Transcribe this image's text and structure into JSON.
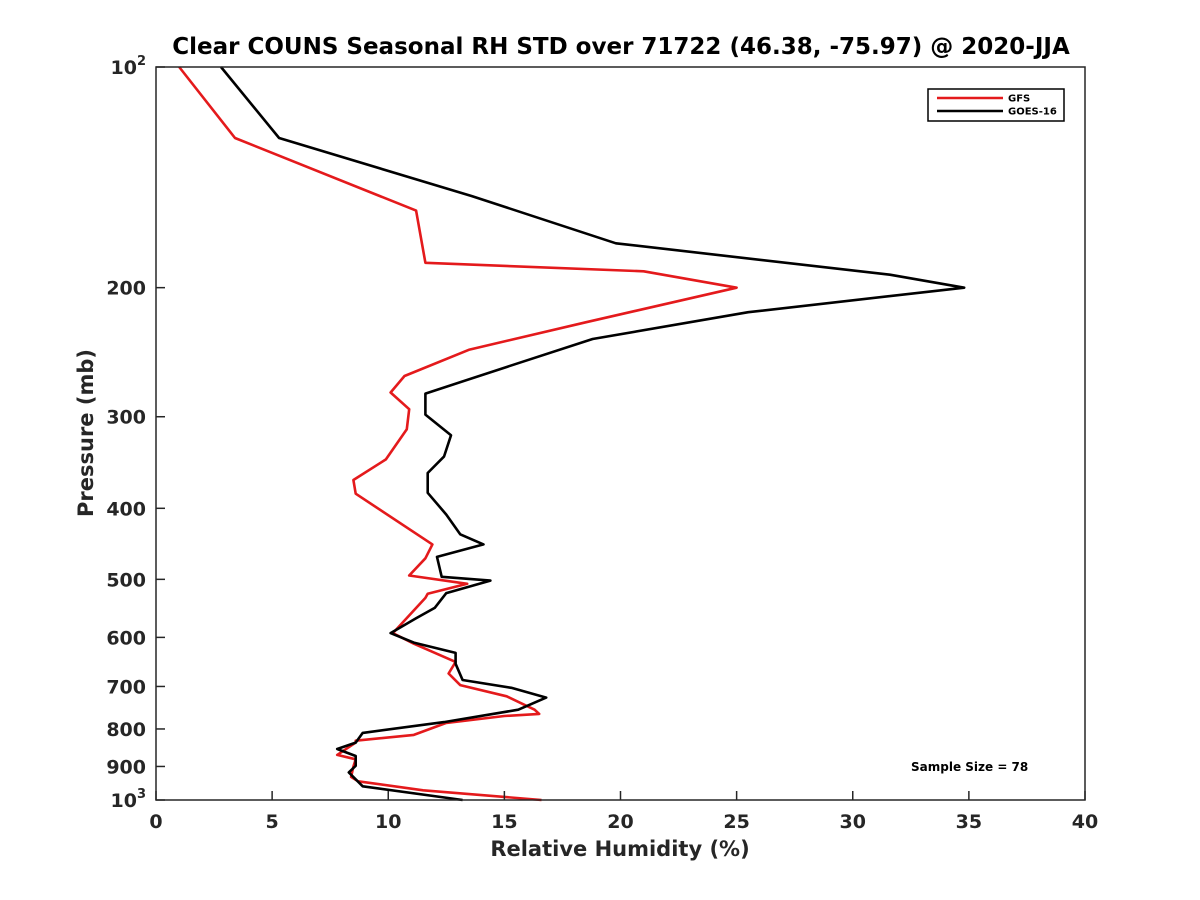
{
  "chart_data": {
    "type": "line",
    "title": "Clear COUNS Seasonal RH STD over 71722 (46.38, -75.97) @ 2020-JJA",
    "xlabel": "Relative Humidity (%)",
    "ylabel": "Pressure (mb)",
    "xlim": [
      0,
      40
    ],
    "ylim": [
      100,
      1000
    ],
    "y_scale": "log",
    "y_reversed": true,
    "x_ticks": [
      "0",
      "5",
      "10",
      "15",
      "20",
      "25",
      "30",
      "35",
      "40"
    ],
    "y_ticks": [
      {
        "value": 100,
        "base": "10",
        "exp": "2"
      },
      {
        "value": 200,
        "label": "200"
      },
      {
        "value": 300,
        "label": "300"
      },
      {
        "value": 400,
        "label": "400"
      },
      {
        "value": 500,
        "label": "500"
      },
      {
        "value": 600,
        "label": "600"
      },
      {
        "value": 700,
        "label": "700"
      },
      {
        "value": 800,
        "label": "800"
      },
      {
        "value": 900,
        "label": "900"
      },
      {
        "value": 1000,
        "base": "10",
        "exp": "3"
      }
    ],
    "legend": {
      "placement": "top-right",
      "entries": [
        "GFS",
        "GOES-16"
      ]
    },
    "annotation": "Sample Size = 78",
    "series": [
      {
        "name": "GFS",
        "color": "#e41a1c",
        "x": [
          1.0,
          3.4,
          11.2,
          11.6,
          21.0,
          25.0,
          18.5,
          13.5,
          10.7,
          10.1,
          10.9,
          10.8,
          9.9,
          8.5,
          8.6,
          11.9,
          11.6,
          10.9,
          13.4,
          11.7,
          11.6,
          10.2,
          11.1,
          12.9,
          12.6,
          13.1,
          15.1,
          16.3,
          16.5,
          15.0,
          12.5,
          11.1,
          8.6,
          8.6,
          7.8,
          8.6,
          8.5,
          8.4,
          8.7,
          11.5,
          16.6
        ],
        "y": [
          100,
          125,
          157,
          185,
          190,
          200,
          223,
          243,
          264,
          278,
          293,
          312,
          343,
          366,
          382,
          448,
          468,
          494,
          507,
          523,
          530,
          592,
          612,
          648,
          672,
          697,
          722,
          753,
          763,
          768,
          785,
          815,
          830,
          835,
          868,
          880,
          900,
          930,
          943,
          970,
          1000
        ]
      },
      {
        "name": "GOES-16",
        "color": "#000000",
        "x": [
          2.8,
          5.3,
          13.6,
          19.8,
          31.6,
          34.8,
          25.5,
          18.8,
          15.2,
          11.6,
          11.6,
          12.7,
          12.4,
          11.7,
          11.7,
          12.5,
          13.1,
          14.1,
          12.1,
          12.3,
          14.4,
          12.5,
          12.0,
          11.2,
          10.1,
          11.1,
          12.9,
          12.9,
          13.2,
          15.3,
          16.8,
          15.6,
          12.4,
          8.9,
          8.6,
          7.8,
          8.6,
          8.6,
          8.3,
          8.9,
          13.2
        ],
        "y": [
          100,
          125,
          150,
          174,
          192,
          200,
          216,
          235,
          256,
          279,
          298,
          318,
          340,
          358,
          381,
          408,
          434,
          448,
          466,
          496,
          502,
          522,
          547,
          565,
          592,
          610,
          630,
          652,
          686,
          703,
          725,
          753,
          783,
          810,
          835,
          852,
          871,
          898,
          917,
          958,
          1000
        ]
      }
    ]
  }
}
